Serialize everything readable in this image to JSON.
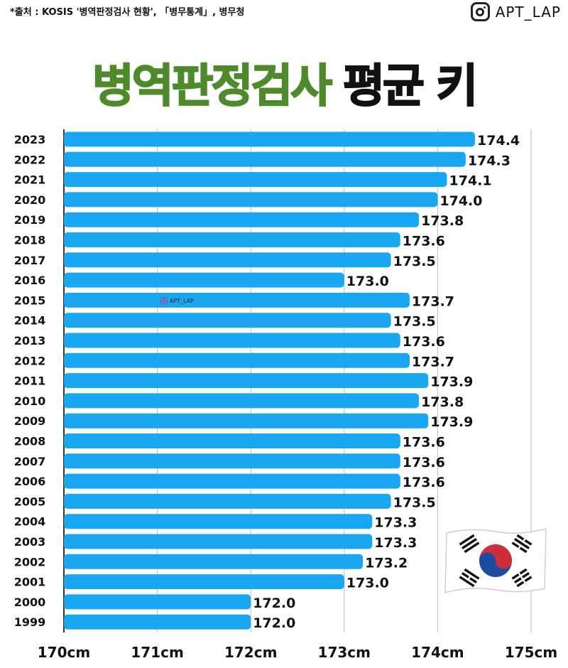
{
  "source_note": "*출처 : KOSIS '병역판정검사 현황', 「병무통계」, 병무청",
  "brand": {
    "name": "APT_LAP",
    "icon": "instagram-icon"
  },
  "title": {
    "green_part": "병역판정검사",
    "black_part": "평균 키"
  },
  "watermark": "APT_LAP",
  "flag": "south-korea-flag",
  "colors": {
    "bar": "#1aa7f1",
    "title_green": "#4e8a2b",
    "grid": "#bdbdbd"
  },
  "chart_data": {
    "type": "bar",
    "orientation": "horizontal",
    "title": "병역판정검사 평균 키",
    "categories": [
      "2023",
      "2022",
      "2021",
      "2020",
      "2019",
      "2018",
      "2017",
      "2016",
      "2015",
      "2014",
      "2013",
      "2012",
      "2011",
      "2010",
      "2009",
      "2008",
      "2007",
      "2006",
      "2005",
      "2004",
      "2003",
      "2002",
      "2001",
      "2000",
      "1999"
    ],
    "values": [
      174.4,
      174.3,
      174.1,
      174.0,
      173.8,
      173.6,
      173.5,
      173.0,
      173.7,
      173.5,
      173.6,
      173.7,
      173.9,
      173.8,
      173.9,
      173.6,
      173.6,
      173.6,
      173.5,
      173.3,
      173.3,
      173.2,
      173.0,
      172.0,
      172.0
    ],
    "value_labels": [
      "174.4",
      "174.3",
      "174.1",
      "174.0",
      "173.8",
      "173.6",
      "173.5",
      "173.0",
      "173.7",
      "173.5",
      "173.6",
      "173.7",
      "173.9",
      "173.8",
      "173.9",
      "173.6",
      "173.6",
      "173.6",
      "173.5",
      "173.3",
      "173.3",
      "173.2",
      "173.0",
      "172.0",
      "172.0"
    ],
    "xlim": [
      170,
      175
    ],
    "x_ticks": [
      170,
      171,
      172,
      173,
      174,
      175
    ],
    "x_tick_labels": [
      "170cm",
      "171cm",
      "172cm",
      "173cm",
      "174cm",
      "175cm"
    ],
    "grid": true,
    "legend": "none"
  }
}
